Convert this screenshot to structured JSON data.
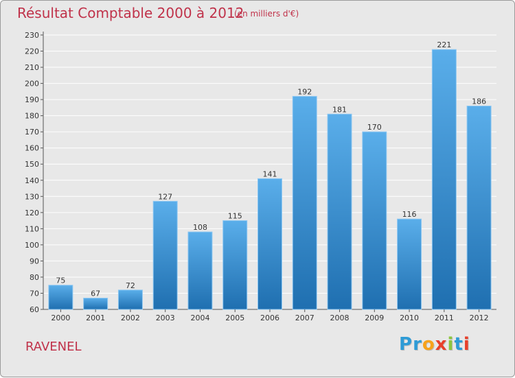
{
  "header": {
    "title": "Résultat Comptable 2000 à 2012",
    "subtitle": "(en milliers d'€)"
  },
  "footer": {
    "commune": "RAVENEL",
    "logo_letters": [
      "P",
      "r",
      "o",
      "x",
      "i",
      "t",
      "i"
    ],
    "logo_colors": [
      "#2e9bd6",
      "#2e9bd6",
      "#f7a21b",
      "#e8402b",
      "#8dc63f",
      "#2e9bd6",
      "#e8402b"
    ]
  },
  "colors": {
    "accent": "#c0324a",
    "bar_top": "#5aaeea",
    "bar_bottom": "#1f6fb0",
    "plot_bg": "#e8e8e8",
    "grid": "#ffffff"
  },
  "chart_data": {
    "type": "bar",
    "title": "Résultat Comptable 2000 à 2012",
    "subtitle": "(en milliers d'€)",
    "xlabel": "",
    "ylabel": "",
    "categories": [
      "2000",
      "2001",
      "2002",
      "2003",
      "2004",
      "2005",
      "2006",
      "2007",
      "2008",
      "2009",
      "2010",
      "2011",
      "2012"
    ],
    "values": [
      75,
      67,
      72,
      127,
      108,
      115,
      141,
      192,
      181,
      170,
      116,
      221,
      186
    ],
    "ylim": [
      60,
      230
    ],
    "yticks": [
      60,
      70,
      80,
      90,
      100,
      110,
      120,
      130,
      140,
      150,
      160,
      170,
      180,
      190,
      200,
      210,
      220,
      230
    ],
    "grid": true,
    "legend": "none"
  }
}
